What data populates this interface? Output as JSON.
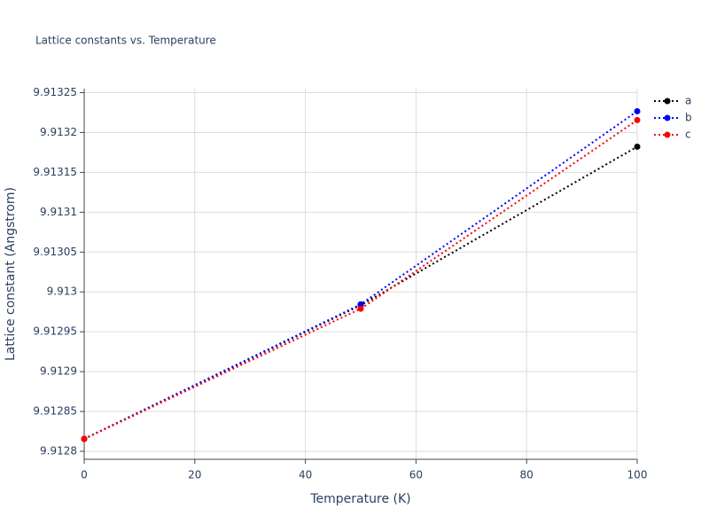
{
  "chart_data": {
    "type": "line",
    "title": "Lattice constants vs. Temperature",
    "x_label": "Temperature (K)",
    "y_label": "Lattice constant (Angstrom)",
    "x": [
      0,
      50,
      100
    ],
    "series": [
      {
        "name": "a",
        "color": "#000000",
        "values": [
          9.9128156,
          9.9129833,
          9.9131822
        ]
      },
      {
        "name": "b",
        "color": "#0000ff",
        "values": [
          9.9128156,
          9.9129844,
          9.9132267
        ]
      },
      {
        "name": "c",
        "color": "#ff0000",
        "values": [
          9.9128156,
          9.9129789,
          9.9132156
        ]
      }
    ],
    "xlim": [
      0,
      100
    ],
    "xticks": [
      0,
      20,
      40,
      60,
      80,
      100
    ],
    "ylim": [
      9.91279,
      9.913255
    ],
    "yticks": [
      9.9128,
      9.91285,
      9.9129,
      9.91295,
      9.913,
      9.91305,
      9.9131,
      9.91315,
      9.9132,
      9.91325
    ],
    "grid": true,
    "legend": "top-right"
  }
}
